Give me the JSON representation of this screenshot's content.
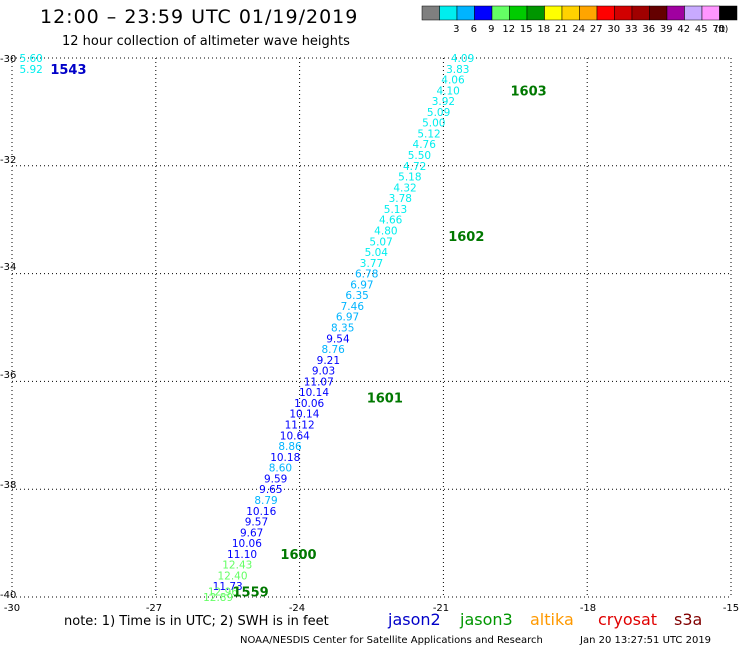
{
  "header": {
    "title": "12:00 – 23:59 UTC 01/19/2019",
    "subtitle": "12 hour collection of altimeter wave heights"
  },
  "legend": {
    "unit": "(ft)",
    "bins": [
      {
        "label": "",
        "color": "#7f7f7f"
      },
      {
        "label": "3",
        "color": "#00eeee"
      },
      {
        "label": "6",
        "color": "#00b4ff"
      },
      {
        "label": "9",
        "color": "#0000ff"
      },
      {
        "label": "12",
        "color": "#64ff64"
      },
      {
        "label": "15",
        "color": "#00cc00"
      },
      {
        "label": "18",
        "color": "#009600"
      },
      {
        "label": "21",
        "color": "#ffff00"
      },
      {
        "label": "24",
        "color": "#ffd200"
      },
      {
        "label": "27",
        "color": "#ffa500"
      },
      {
        "label": "30",
        "color": "#ff0000"
      },
      {
        "label": "33",
        "color": "#d20000"
      },
      {
        "label": "36",
        "color": "#a00000"
      },
      {
        "label": "39",
        "color": "#640000"
      },
      {
        "label": "42",
        "color": "#a000a0"
      },
      {
        "label": "45",
        "color": "#c8aaff"
      },
      {
        "label": "70",
        "color": "#ff96ff"
      },
      {
        "label": "",
        "color": "#000000"
      }
    ]
  },
  "axes": {
    "lon_range": [
      -30,
      -15
    ],
    "lat_range": [
      -40,
      -30
    ],
    "lon_ticks": [
      "-30",
      "-27",
      "-24",
      "-21",
      "-18",
      "-15"
    ],
    "lat_ticks": [
      "-30",
      "-32",
      "-34",
      "-36",
      "-38",
      "-40"
    ],
    "grid": "dotted"
  },
  "colors": {
    "jason2": "#0000c8",
    "jason3": "#009600",
    "altika": "#ff9900",
    "cryosat": "#e00000",
    "s3a": "#800000",
    "time": "#007800"
  },
  "chart_data": {
    "type": "scatter",
    "title": "12:00 – 23:59 UTC 01/19/2019",
    "subtitle": "12 hour collection of altimeter wave heights",
    "xlim": [
      -30,
      -15
    ],
    "ylim": [
      -40,
      -30
    ],
    "unit": "ft",
    "time_labels": [
      {
        "label": "1543",
        "x": -29.2,
        "y": -30.2
      },
      {
        "label": "1603",
        "x": -19.6,
        "y": -30.6
      },
      {
        "label": "1602",
        "x": -20.9,
        "y": -33.3
      },
      {
        "label": "1601",
        "x": -22.6,
        "y": -36.3
      },
      {
        "label": "1600",
        "x": -24.4,
        "y": -39.2
      },
      {
        "label": "1559",
        "x": -25.4,
        "y": -39.9
      }
    ],
    "series": [
      {
        "name": "jason2",
        "points": [
          {
            "x": -29.6,
            "y": -30.0,
            "v": "5.60"
          },
          {
            "x": -29.6,
            "y": -30.2,
            "v": "5.92"
          }
        ]
      },
      {
        "name": "jason2",
        "points": [
          {
            "x": -20.6,
            "y": -30.0,
            "v": "4.09"
          },
          {
            "x": -20.7,
            "y": -30.2,
            "v": "3.83"
          },
          {
            "x": -20.8,
            "y": -30.4,
            "v": "4.06"
          },
          {
            "x": -20.9,
            "y": -30.6,
            "v": "4.10"
          },
          {
            "x": -21.0,
            "y": -30.8,
            "v": "3.92"
          },
          {
            "x": -21.1,
            "y": -31.0,
            "v": "5.09"
          },
          {
            "x": -21.2,
            "y": -31.2,
            "v": "5.00"
          },
          {
            "x": -21.3,
            "y": -31.4,
            "v": "5.12"
          },
          {
            "x": -21.4,
            "y": -31.6,
            "v": "4.76"
          },
          {
            "x": -21.5,
            "y": -31.8,
            "v": "5.50"
          },
          {
            "x": -21.6,
            "y": -32.0,
            "v": "4.72"
          },
          {
            "x": -21.7,
            "y": -32.2,
            "v": "5.18"
          },
          {
            "x": -21.8,
            "y": -32.4,
            "v": "4.32"
          },
          {
            "x": -21.9,
            "y": -32.6,
            "v": "3.78"
          },
          {
            "x": -22.0,
            "y": -32.8,
            "v": "5.13"
          },
          {
            "x": -22.1,
            "y": -33.0,
            "v": "4.66"
          },
          {
            "x": -22.2,
            "y": -33.2,
            "v": "4.80"
          },
          {
            "x": -22.3,
            "y": -33.4,
            "v": "5.07"
          },
          {
            "x": -22.4,
            "y": -33.6,
            "v": "5.04"
          },
          {
            "x": -22.5,
            "y": -33.8,
            "v": "3.77"
          },
          {
            "x": -22.6,
            "y": -34.0,
            "v": "6.78"
          },
          {
            "x": -22.7,
            "y": -34.2,
            "v": "6.97"
          },
          {
            "x": -22.8,
            "y": -34.4,
            "v": "6.35"
          },
          {
            "x": -22.9,
            "y": -34.6,
            "v": "7.46"
          },
          {
            "x": -23.0,
            "y": -34.8,
            "v": "6.97"
          },
          {
            "x": -23.1,
            "y": -35.0,
            "v": "8.35"
          },
          {
            "x": -23.2,
            "y": -35.2,
            "v": "9.54"
          },
          {
            "x": -23.3,
            "y": -35.4,
            "v": "8.76"
          },
          {
            "x": -23.4,
            "y": -35.6,
            "v": "9.21"
          },
          {
            "x": -23.5,
            "y": -35.8,
            "v": "9.03"
          },
          {
            "x": -23.6,
            "y": -36.0,
            "v": "11.07"
          },
          {
            "x": -23.7,
            "y": -36.2,
            "v": "10.14"
          },
          {
            "x": -23.8,
            "y": -36.4,
            "v": "10.06"
          },
          {
            "x": -23.9,
            "y": -36.6,
            "v": "10.14"
          },
          {
            "x": -24.0,
            "y": -36.8,
            "v": "11.12"
          },
          {
            "x": -24.1,
            "y": -37.0,
            "v": "10.64"
          },
          {
            "x": -24.2,
            "y": -37.2,
            "v": "8.86"
          },
          {
            "x": -24.3,
            "y": -37.4,
            "v": "10.18"
          },
          {
            "x": -24.4,
            "y": -37.6,
            "v": "8.60"
          },
          {
            "x": -24.5,
            "y": -37.8,
            "v": "9.59"
          },
          {
            "x": -24.6,
            "y": -38.0,
            "v": "9.65"
          },
          {
            "x": -24.7,
            "y": -38.2,
            "v": "8.79"
          },
          {
            "x": -24.8,
            "y": -38.4,
            "v": "10.16"
          },
          {
            "x": -24.9,
            "y": -38.6,
            "v": "9.57"
          },
          {
            "x": -25.0,
            "y": -38.8,
            "v": "9.67"
          },
          {
            "x": -25.1,
            "y": -39.0,
            "v": "10.06"
          },
          {
            "x": -25.2,
            "y": -39.2,
            "v": "11.10"
          },
          {
            "x": -25.3,
            "y": -39.4,
            "v": "12.43"
          },
          {
            "x": -25.4,
            "y": -39.6,
            "v": "12.40"
          },
          {
            "x": -25.5,
            "y": -39.8,
            "v": "11.73"
          },
          {
            "x": -25.6,
            "y": -39.9,
            "v": "12.96"
          },
          {
            "x": -25.7,
            "y": -40.0,
            "v": "12.89"
          }
        ]
      }
    ]
  },
  "footer": {
    "note": "note: 1) Time is in UTC; 2) SWH is in feet",
    "satellites": [
      {
        "name": "jason2"
      },
      {
        "name": "jason3"
      },
      {
        "name": "altika"
      },
      {
        "name": "cryosat"
      },
      {
        "name": "s3a"
      }
    ],
    "credit": "NOAA/NESDIS Center for Satellite Applications and Research",
    "timestamp": "Jan 20 13:27:51 UTC 2019"
  }
}
